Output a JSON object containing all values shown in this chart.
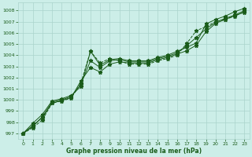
{
  "bg_color": "#cceee8",
  "grid_color": "#aad4cc",
  "line_color": "#1a5c1a",
  "xlabel": "Graphe pression niveau de la mer (hPa)",
  "ylim": [
    996.5,
    1008.7
  ],
  "xlim": [
    -0.5,
    23.5
  ],
  "yticks": [
    997,
    998,
    999,
    1000,
    1001,
    1002,
    1003,
    1004,
    1005,
    1006,
    1007,
    1008
  ],
  "xticks": [
    0,
    1,
    2,
    3,
    4,
    5,
    6,
    7,
    8,
    9,
    10,
    11,
    12,
    13,
    14,
    15,
    16,
    17,
    18,
    19,
    20,
    21,
    22,
    23
  ],
  "series1": [
    997.0,
    997.9,
    998.7,
    999.9,
    1000.1,
    1000.4,
    1001.2,
    1004.35,
    1003.1,
    1003.6,
    1003.7,
    1003.5,
    1003.5,
    1003.5,
    1003.8,
    1004.0,
    1004.35,
    1004.7,
    1005.1,
    1006.8,
    1007.2,
    1007.5,
    1007.9,
    1008.2
  ],
  "series2": [
    997.0,
    997.7,
    998.4,
    999.7,
    999.95,
    1000.2,
    1001.7,
    1002.9,
    1002.5,
    1003.2,
    1003.4,
    1003.3,
    1003.3,
    1003.3,
    1003.6,
    1003.8,
    1004.1,
    1004.4,
    1004.9,
    1006.1,
    1006.85,
    1007.2,
    1007.55,
    1007.85
  ],
  "series3": [
    997.0,
    997.5,
    998.2,
    999.7,
    999.9,
    1000.15,
    1001.5,
    1004.35,
    1003.3,
    1003.7,
    1003.5,
    1003.2,
    1003.2,
    1003.2,
    1003.5,
    1003.7,
    1004.0,
    1005.05,
    1006.2,
    1006.55,
    1007.0,
    1007.2,
    1007.5,
    1007.9
  ],
  "series4": [
    997.0,
    997.6,
    998.5,
    999.8,
    1000.0,
    1000.3,
    1001.4,
    1003.5,
    1002.9,
    1003.5,
    1003.6,
    1003.4,
    1003.4,
    1003.4,
    1003.7,
    1003.9,
    1004.2,
    1004.85,
    1005.6,
    1006.35,
    1006.95,
    1007.3,
    1007.6,
    1008.0
  ]
}
